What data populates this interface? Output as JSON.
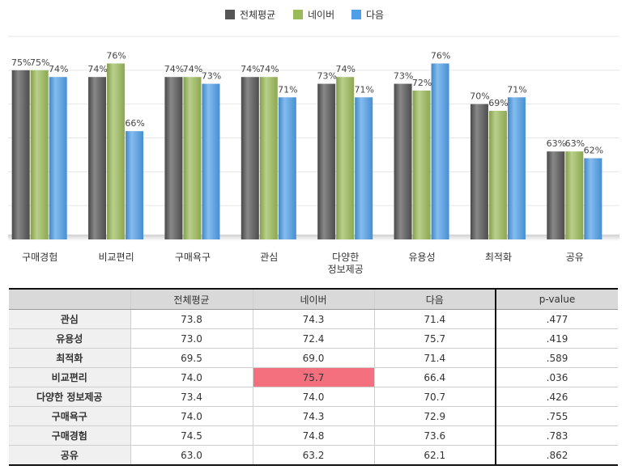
{
  "legend": [
    {
      "name": "전체평균",
      "color": "#555555"
    },
    {
      "name": "네이버",
      "color": "#9bbb59"
    },
    {
      "name": "다음",
      "color": "#4f9fe8"
    }
  ],
  "chart_data": {
    "type": "bar",
    "categories": [
      "구매경험",
      "비교편리",
      "구매욕구",
      "관심",
      "다양한\n정보제공",
      "유용성",
      "최적화",
      "공유"
    ],
    "series": [
      {
        "name": "전체평균",
        "values": [
          75,
          74,
          74,
          74,
          73,
          73,
          70,
          63
        ]
      },
      {
        "name": "네이버",
        "values": [
          75,
          76,
          74,
          74,
          74,
          72,
          69,
          63
        ]
      },
      {
        "name": "다음",
        "values": [
          74,
          66,
          73,
          71,
          71,
          76,
          71,
          62
        ]
      }
    ],
    "value_suffix": "%",
    "ylim": [
      50,
      80
    ],
    "grid": true,
    "legend_position": "top-center"
  },
  "table": {
    "headers": [
      "",
      "전체평균",
      "네이버",
      "다음",
      "p-value"
    ],
    "rows": [
      {
        "label": "관심",
        "cells": [
          "73.8",
          "74.3",
          "71.4",
          ".477"
        ]
      },
      {
        "label": "유용성",
        "cells": [
          "73.0",
          "72.4",
          "75.7",
          ".419"
        ]
      },
      {
        "label": "최적화",
        "cells": [
          "69.5",
          "69.0",
          "71.4",
          ".589"
        ]
      },
      {
        "label": "비교편리",
        "cells": [
          "74.0",
          "75.7",
          "66.4",
          ".036"
        ]
      },
      {
        "label": "다양한 정보제공",
        "cells": [
          "73.4",
          "74.0",
          "70.7",
          ".426"
        ]
      },
      {
        "label": "구매욕구",
        "cells": [
          "74.0",
          "74.3",
          "72.9",
          ".755"
        ]
      },
      {
        "label": "구매경험",
        "cells": [
          "74.5",
          "74.8",
          "73.6",
          ".783"
        ]
      },
      {
        "label": "공유",
        "cells": [
          "63.0",
          "63.2",
          "62.1",
          ".862"
        ]
      }
    ],
    "highlight": {
      "row": 3,
      "col": 1,
      "color": "#f4707f"
    }
  }
}
